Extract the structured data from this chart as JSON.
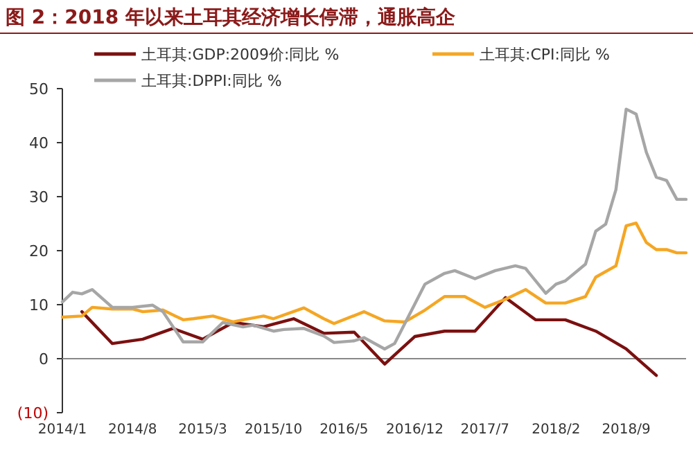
{
  "chart_data": {
    "type": "line",
    "title": "图 2：2018 年以来土耳其经济增长停滞，通胀高企",
    "xlim": [
      "2014-01",
      "2019-03"
    ],
    "xticks": [
      {
        "value": "2014-01",
        "label": "2014/1"
      },
      {
        "value": "2014-08",
        "label": "2014/8"
      },
      {
        "value": "2015-03",
        "label": "2015/3"
      },
      {
        "value": "2015-10",
        "label": "2015/10"
      },
      {
        "value": "2016-05",
        "label": "2016/5"
      },
      {
        "value": "2016-12",
        "label": "2016/12"
      },
      {
        "value": "2017-07",
        "label": "2017/7"
      },
      {
        "value": "2018-02",
        "label": "2018/2"
      },
      {
        "value": "2018-09",
        "label": "2018/9"
      }
    ],
    "ylim": [
      -10,
      50
    ],
    "yticks": [
      {
        "value": -10,
        "label": "(10)"
      },
      0,
      10,
      20,
      30,
      40,
      50
    ],
    "grid": false,
    "legend": "top",
    "ref_lines": [
      {
        "axis": "y",
        "value": 0,
        "color": "#888888"
      }
    ],
    "marker": "none",
    "line_style": "solid",
    "series": [
      {
        "name": "土耳其:GDP:2009价:同比 %",
        "color": "#7b1010",
        "x": [
          "2014-03",
          "2014-06",
          "2014-09",
          "2014-12",
          "2015-03",
          "2015-06",
          "2015-09",
          "2015-12",
          "2016-03",
          "2016-06",
          "2016-09",
          "2016-12",
          "2017-03",
          "2017-06",
          "2017-09",
          "2017-12",
          "2018-03",
          "2018-06",
          "2018-09",
          "2018-12"
        ],
        "values": [
          8.7,
          2.8,
          3.6,
          5.6,
          3.6,
          6.7,
          5.9,
          7.4,
          4.7,
          4.9,
          -1.0,
          4.1,
          5.1,
          5.1,
          11.3,
          7.2,
          7.2,
          5.1,
          1.8,
          -3.1
        ]
      },
      {
        "name": "土耳其:CPI:同比 %",
        "color": "#f5a623",
        "x": [
          "2014-01",
          "2014-03",
          "2014-04",
          "2014-06",
          "2014-08",
          "2014-09",
          "2014-11",
          "2015-01",
          "2015-02",
          "2015-04",
          "2015-06",
          "2015-07",
          "2015-09",
          "2015-10",
          "2016-01",
          "2016-03",
          "2016-04",
          "2016-07",
          "2016-09",
          "2016-11",
          "2017-01",
          "2017-03",
          "2017-05",
          "2017-07",
          "2017-09",
          "2017-11",
          "2018-01",
          "2018-03",
          "2018-05",
          "2018-06",
          "2018-08",
          "2018-09",
          "2018-10",
          "2018-11",
          "2018-12",
          "2019-01",
          "2019-02",
          "2019-03"
        ],
        "values": [
          7.7,
          7.9,
          9.5,
          9.2,
          9.2,
          8.7,
          9.0,
          7.2,
          7.4,
          7.9,
          6.8,
          7.2,
          7.9,
          7.4,
          9.4,
          7.4,
          6.5,
          8.7,
          7.0,
          6.8,
          9.0,
          11.5,
          11.5,
          9.5,
          11.0,
          12.8,
          10.3,
          10.3,
          11.5,
          15.1,
          17.2,
          24.6,
          25.1,
          21.5,
          20.2,
          20.2,
          19.6,
          19.6
        ]
      },
      {
        "name": "土耳其:DPPI:同比 %",
        "color": "#a6a6a6",
        "x": [
          "2014-01",
          "2014-02",
          "2014-03",
          "2014-04",
          "2014-06",
          "2014-08",
          "2014-10",
          "2014-11",
          "2015-01",
          "2015-03",
          "2015-05",
          "2015-07",
          "2015-08",
          "2015-10",
          "2015-11",
          "2016-01",
          "2016-03",
          "2016-04",
          "2016-06",
          "2016-07",
          "2016-09",
          "2016-10",
          "2017-01",
          "2017-03",
          "2017-04",
          "2017-06",
          "2017-08",
          "2017-10",
          "2017-11",
          "2018-01",
          "2018-02",
          "2018-03",
          "2018-05",
          "2018-06",
          "2018-07",
          "2018-08",
          "2018-09",
          "2018-10",
          "2018-11",
          "2018-12",
          "2019-01",
          "2019-02",
          "2019-03"
        ],
        "values": [
          10.5,
          12.3,
          12.0,
          12.8,
          9.5,
          9.5,
          9.9,
          8.7,
          3.1,
          3.1,
          6.7,
          5.9,
          6.2,
          5.1,
          5.4,
          5.6,
          4.2,
          3.0,
          3.3,
          3.9,
          1.8,
          2.8,
          13.8,
          15.8,
          16.3,
          14.8,
          16.3,
          17.2,
          16.7,
          12.1,
          13.8,
          14.4,
          17.5,
          23.6,
          24.9,
          31.3,
          46.2,
          45.3,
          38.2,
          33.6,
          33.0,
          29.5,
          29.5
        ]
      }
    ]
  }
}
